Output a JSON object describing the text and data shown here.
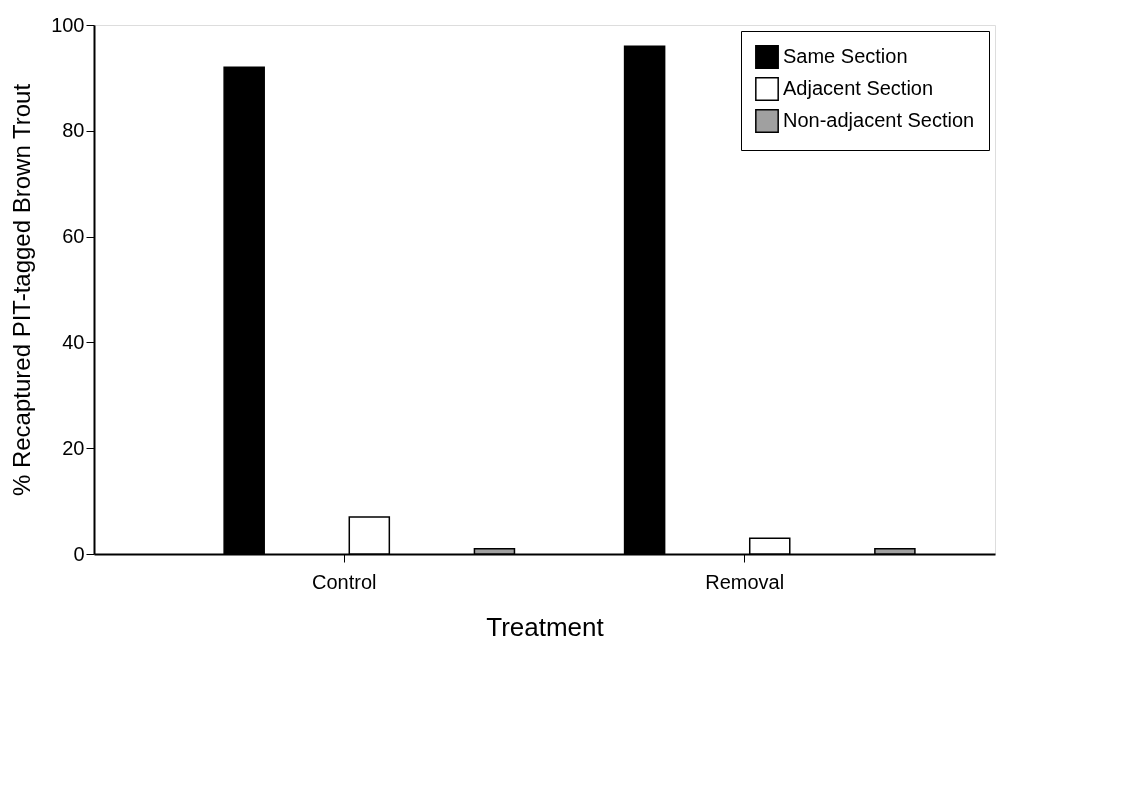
{
  "chart_data": {
    "type": "bar",
    "xlabel": "Treatment",
    "ylabel": "% Recaptured PIT-tagged Brown Trout",
    "categories": [
      "Control",
      "Removal"
    ],
    "series": [
      {
        "name": "Same Section",
        "color": "#000000",
        "values": [
          92,
          96
        ]
      },
      {
        "name": "Adjacent Section",
        "color": "#ffffff",
        "values": [
          7,
          3
        ]
      },
      {
        "name": "Non-adjacent Section",
        "color": "#a0a0a0",
        "values": [
          1,
          1
        ]
      }
    ],
    "ylim": [
      0,
      100
    ],
    "yticks": [
      0,
      20,
      40,
      60,
      80,
      100
    ],
    "grid": false,
    "legend": "top right"
  }
}
